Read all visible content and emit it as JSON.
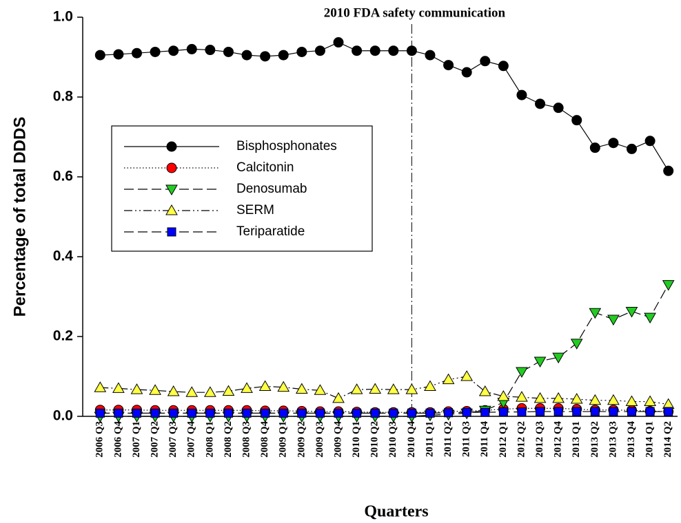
{
  "chart_data": {
    "type": "line",
    "x_label": "Quarters",
    "y_label": "Percentage of total DDDS",
    "annotation": {
      "text": "2010 FDA safety communication",
      "category": "2010 Q4"
    },
    "categories": [
      "2006 Q3",
      "2006 Q4",
      "2007 Q1",
      "2007 Q2",
      "2007 Q3",
      "2007 Q4",
      "2008 Q1",
      "2008 Q2",
      "2008 Q3",
      "2008 Q4",
      "2009 Q1",
      "2009 Q2",
      "2009 Q3",
      "2009 Q4",
      "2010 Q1",
      "2010 Q2",
      "2010 Q3",
      "2010 Q4",
      "2011 Q1",
      "2011 Q2",
      "2011 Q3",
      "2011 Q4",
      "2012 Q1",
      "2012 Q2",
      "2012 Q3",
      "2012 Q4",
      "2013 Q1",
      "2013 Q2",
      "2013 Q3",
      "2013 Q4",
      "2014 Q1",
      "2014 Q2"
    ],
    "ylim": [
      0,
      1
    ],
    "yticks": [
      {
        "value": 0,
        "label": "0.0"
      },
      0.2,
      0.4,
      0.6,
      0.8,
      {
        "value": 1,
        "label": "1.0"
      }
    ],
    "series": [
      {
        "name": "Bisphosphonates",
        "color": "#000000",
        "marker": "circle",
        "dash": "solid",
        "values": [
          0.905,
          0.907,
          0.91,
          0.913,
          0.916,
          0.92,
          0.918,
          0.913,
          0.905,
          0.902,
          0.905,
          0.913,
          0.916,
          0.937,
          0.916,
          0.916,
          0.916,
          0.916,
          0.905,
          0.88,
          0.862,
          0.89,
          0.878,
          0.805,
          0.783,
          0.773,
          0.742,
          0.673,
          0.685,
          0.67,
          0.69,
          0.615
        ]
      },
      {
        "name": "Calcitonin",
        "color": "#ff0000",
        "marker": "circle",
        "dash": "dotted",
        "values": [
          0.016,
          0.016,
          0.016,
          0.015,
          0.015,
          0.015,
          0.015,
          0.015,
          0.015,
          0.014,
          0.014,
          0.013,
          0.012,
          0.012,
          0.011,
          0.01,
          0.01,
          0.01,
          0.01,
          0.012,
          0.013,
          0.015,
          0.018,
          0.02,
          0.02,
          0.02,
          0.018,
          0.016,
          0.016,
          0.015,
          0.013,
          0.012
        ]
      },
      {
        "name": "Denosumab",
        "color": "#22cc22",
        "marker": "triangle-down",
        "dash": "longdash",
        "values": [
          0,
          0,
          0,
          0,
          0,
          0,
          0,
          0,
          0,
          0,
          0,
          0,
          0,
          0,
          0,
          0,
          0,
          0,
          0.003,
          0.005,
          0.008,
          0.015,
          0.035,
          0.112,
          0.138,
          0.148,
          0.183,
          0.26,
          0.243,
          0.263,
          0.248,
          0.33
        ]
      },
      {
        "name": "SERM",
        "color": "#ffff44",
        "marker": "triangle-up",
        "dash": "dashdotdot",
        "values": [
          0.072,
          0.07,
          0.067,
          0.065,
          0.062,
          0.06,
          0.06,
          0.063,
          0.07,
          0.075,
          0.073,
          0.068,
          0.065,
          0.045,
          0.067,
          0.068,
          0.067,
          0.067,
          0.075,
          0.092,
          0.1,
          0.062,
          0.05,
          0.048,
          0.045,
          0.045,
          0.043,
          0.04,
          0.04,
          0.037,
          0.037,
          0.03
        ]
      },
      {
        "name": "Teriparatide",
        "color": "#0000ff",
        "marker": "square",
        "dash": "longdash",
        "values": [
          0.008,
          0.008,
          0.008,
          0.008,
          0.008,
          0.008,
          0.008,
          0.008,
          0.008,
          0.008,
          0.008,
          0.008,
          0.008,
          0.008,
          0.008,
          0.008,
          0.008,
          0.008,
          0.008,
          0.009,
          0.01,
          0.01,
          0.011,
          0.011,
          0.012,
          0.012,
          0.012,
          0.012,
          0.012,
          0.012,
          0.012,
          0.012
        ]
      }
    ]
  }
}
